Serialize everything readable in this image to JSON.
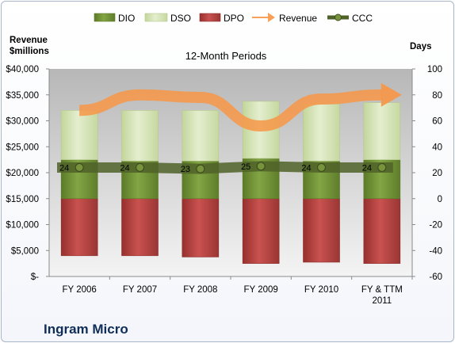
{
  "chart_data": {
    "type": "bar",
    "title": "12-Month Periods",
    "company": "Ingram Micro",
    "left_axis_label_line1": "Revenue",
    "left_axis_label_line2": "$millions",
    "right_axis_label": "Days",
    "categories": [
      [
        "FY 2006"
      ],
      [
        "FY 2007"
      ],
      [
        "FY 2008"
      ],
      [
        "FY 2009"
      ],
      [
        "FY 2010"
      ],
      [
        "FY & TTM",
        "2011"
      ]
    ],
    "left_ticks": [
      "$-",
      "$5,000",
      "$10,000",
      "$15,000",
      "$20,000",
      "$25,000",
      "$30,000",
      "$35,000",
      "$40,000"
    ],
    "right_ticks": [
      "-60",
      "-40",
      "-20",
      "0",
      "20",
      "40",
      "60",
      "80",
      "100"
    ],
    "left_ylim": [
      0,
      40000
    ],
    "right_ylim": [
      -60,
      100
    ],
    "legend": [
      {
        "name": "DIO",
        "color": "#77933c",
        "kind": "box"
      },
      {
        "name": "DSO",
        "color": "#d7e4bd",
        "kind": "box"
      },
      {
        "name": "DPO",
        "color": "#c0504d",
        "kind": "box"
      },
      {
        "name": "Revenue",
        "color": "#f79646",
        "kind": "arrow"
      },
      {
        "name": "CCC",
        "color": "#4f6228",
        "kind": "line"
      }
    ],
    "series": [
      {
        "name": "DPO",
        "color": "#c0504d",
        "values": [
          -44,
          -44,
          -45,
          -50,
          -49,
          -50
        ]
      },
      {
        "name": "DIO",
        "color": "#77933c",
        "values": [
          30,
          29,
          29,
          31,
          29,
          30
        ]
      },
      {
        "name": "DSO",
        "color": "#d7e4bd",
        "values": [
          38,
          39,
          39,
          44,
          44,
          44
        ]
      },
      {
        "name": "CCC",
        "color": "#4f6228",
        "values": [
          24,
          24,
          23,
          25,
          24,
          24
        ],
        "labels": [
          "24",
          "24",
          "23",
          "25",
          "24",
          "24"
        ]
      },
      {
        "name": "Revenue",
        "color": "#f79646",
        "values": [
          32000,
          35000,
          34500,
          29000,
          34200,
          35000
        ]
      }
    ],
    "grid": false,
    "legend_position": "top"
  }
}
